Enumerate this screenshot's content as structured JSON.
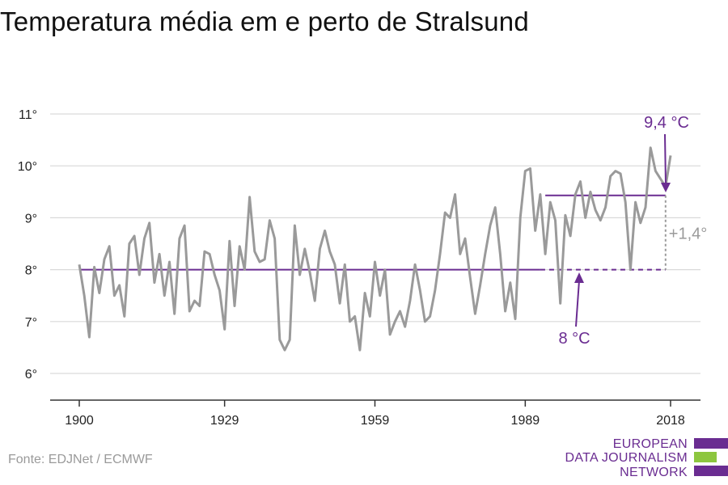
{
  "header": {
    "title": "Temperatura média em e perto de Stralsund"
  },
  "footer": {
    "source": "Fonte: EDJNet / ECMWF"
  },
  "logo": {
    "line1": "EUROPEAN",
    "line2": "DATA JOURNALISM",
    "line3": "NETWORK",
    "colors": [
      "#6a2c91",
      "#8dc63f",
      "#6a2c91"
    ]
  },
  "chart_data": {
    "type": "line",
    "title": "Temperatura média em e perto de Stralsund",
    "xlabel": "",
    "ylabel": "",
    "xlim": [
      1900,
      2018
    ],
    "ylim": [
      6,
      11
    ],
    "grid": true,
    "x_ticks": [
      1900,
      1929,
      1959,
      1989,
      2018
    ],
    "x_tick_labels": [
      "1900",
      "1929",
      "1959",
      "1989",
      "2018"
    ],
    "y_ticks": [
      6,
      7,
      8,
      9,
      10,
      11
    ],
    "y_tick_labels": [
      "6°",
      "7°",
      "8°",
      "9°",
      "10°",
      "11°"
    ],
    "colors": {
      "series": "#9a9a9a",
      "baseline": "#6a2c91",
      "grid": "#d9d9d9",
      "axis": "#333333"
    },
    "series": [
      {
        "x": [
          1900,
          1901,
          1902,
          1903,
          1904,
          1905,
          1906,
          1907,
          1908,
          1909,
          1910,
          1911,
          1912,
          1913,
          1914,
          1915,
          1916,
          1917,
          1918,
          1919,
          1920,
          1921,
          1922,
          1923,
          1924,
          1925,
          1926,
          1927,
          1928,
          1929,
          1930,
          1931,
          1932,
          1933,
          1934,
          1935,
          1936,
          1937,
          1938,
          1939,
          1940,
          1941,
          1942,
          1943,
          1944,
          1945,
          1946,
          1947,
          1948,
          1949,
          1950,
          1951,
          1952,
          1953,
          1954,
          1955,
          1956,
          1957,
          1958,
          1959,
          1960,
          1961,
          1962,
          1963,
          1964,
          1965,
          1966,
          1967,
          1968,
          1969,
          1970,
          1971,
          1972,
          1973,
          1974,
          1975,
          1976,
          1977,
          1978,
          1979,
          1980,
          1981,
          1982,
          1983,
          1984,
          1985,
          1986,
          1987,
          1988,
          1989,
          1990,
          1991,
          1992,
          1993,
          1994,
          1995,
          1996,
          1997,
          1998,
          1999,
          2000,
          2001,
          2002,
          2003,
          2004,
          2005,
          2006,
          2007,
          2008,
          2009,
          2010,
          2011,
          2012,
          2013,
          2014,
          2015,
          2016,
          2017,
          2018
        ],
        "values": [
          8.1,
          7.5,
          6.7,
          8.05,
          7.55,
          8.2,
          8.45,
          7.5,
          7.7,
          7.1,
          8.5,
          8.65,
          7.9,
          8.6,
          8.9,
          7.75,
          8.3,
          7.5,
          8.15,
          7.15,
          8.6,
          8.85,
          7.2,
          7.4,
          7.3,
          8.35,
          8.3,
          7.9,
          7.6,
          6.85,
          8.55,
          7.3,
          8.45,
          8.0,
          9.4,
          8.35,
          8.15,
          8.2,
          8.95,
          8.6,
          6.65,
          6.45,
          6.65,
          8.85,
          7.9,
          8.4,
          7.95,
          7.4,
          8.4,
          8.75,
          8.35,
          8.1,
          7.35,
          8.1,
          7.0,
          7.1,
          6.45,
          7.55,
          7.1,
          8.15,
          7.5,
          8.0,
          6.75,
          7.0,
          7.2,
          6.9,
          7.4,
          8.1,
          7.6,
          7.0,
          7.1,
          7.6,
          8.3,
          9.1,
          9.0,
          9.45,
          8.3,
          8.6,
          7.85,
          7.15,
          7.7,
          8.3,
          8.85,
          9.2,
          8.3,
          7.2,
          7.75,
          7.05,
          9.0,
          9.9,
          9.95,
          8.75,
          9.45,
          8.3,
          9.3,
          8.95,
          7.35,
          9.05,
          8.65,
          9.45,
          9.7,
          9.0,
          9.5,
          9.15,
          8.95,
          9.2,
          9.8,
          9.9,
          9.85,
          9.3,
          8.0,
          9.3,
          8.9,
          9.2,
          10.35,
          9.9,
          9.75,
          9.6,
          10.2
        ]
      }
    ],
    "annotations": {
      "baseline_label": "8 °C",
      "recent_label": "9,4 °C",
      "diff_label": "+1,4°",
      "baseline_value": 8.0,
      "baseline_solid_range": [
        1900,
        1992
      ],
      "baseline_dashed_range": [
        1992,
        2017
      ],
      "recent_value": 9.43,
      "recent_range": [
        1993,
        2017
      ]
    }
  }
}
